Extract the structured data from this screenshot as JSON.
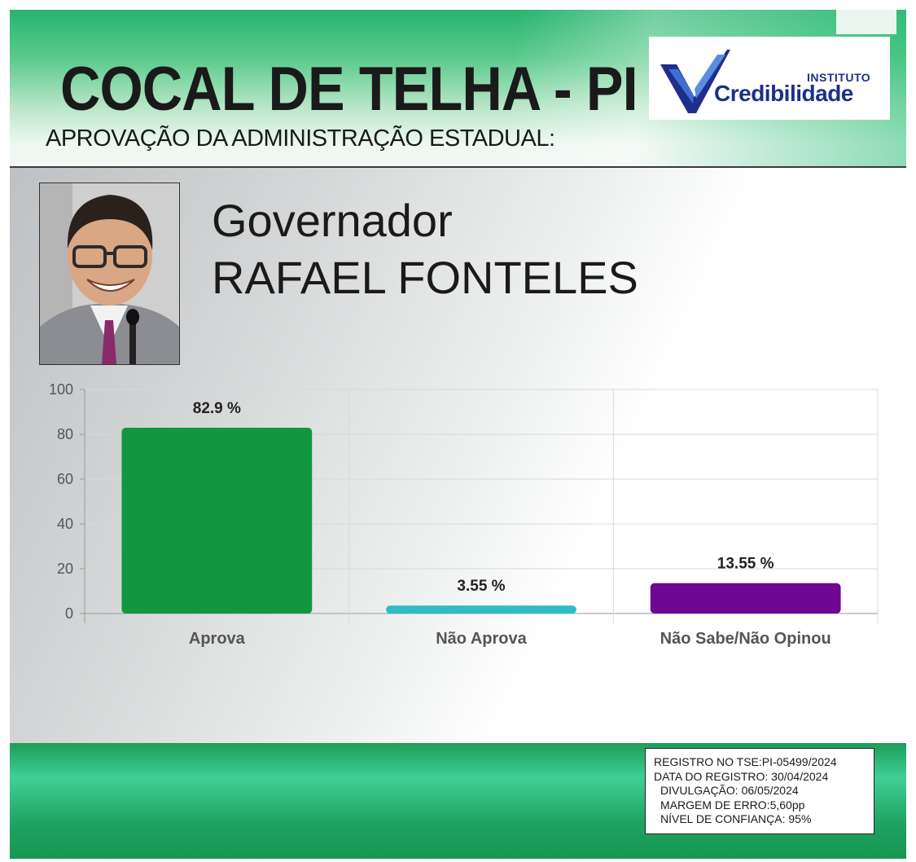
{
  "header": {
    "title": "COCAL DE TELHA - PI",
    "subtitle": "APROVAÇÃO DA ADMINISTRAÇÃO ESTADUAL:"
  },
  "logo": {
    "small": "INSTITUTO",
    "main": "Credibilidade",
    "colors": {
      "blue": "#1d2f8a",
      "check_light": "#3c6fd1"
    }
  },
  "candidate": {
    "role": "Governador",
    "name": "RAFAEL FONTELES"
  },
  "chart_data": {
    "type": "bar",
    "categories": [
      "Aprova",
      "Não Aprova",
      "Não Sabe/Não Opinou"
    ],
    "values": [
      82.9,
      3.55,
      13.55
    ],
    "data_labels": [
      "82.9 %",
      "3.55 %",
      "13.55 %"
    ],
    "colors": [
      "#11973f",
      "#2ebcc5",
      "#6d0794"
    ],
    "ylim": [
      0,
      100
    ],
    "yticks": [
      0,
      20,
      40,
      60,
      80,
      100
    ],
    "grid": true,
    "legend": "none"
  },
  "footer": {
    "lines": [
      "REGISTRO NO TSE:PI-05499/2024",
      "DATA DO REGISTRO: 30/04/2024",
      "DIVULGAÇÃO: 06/05/2024",
      "MARGEM DE ERRO:5,60pp",
      "NÍVEL DE CONFIANÇA: 95%"
    ]
  }
}
